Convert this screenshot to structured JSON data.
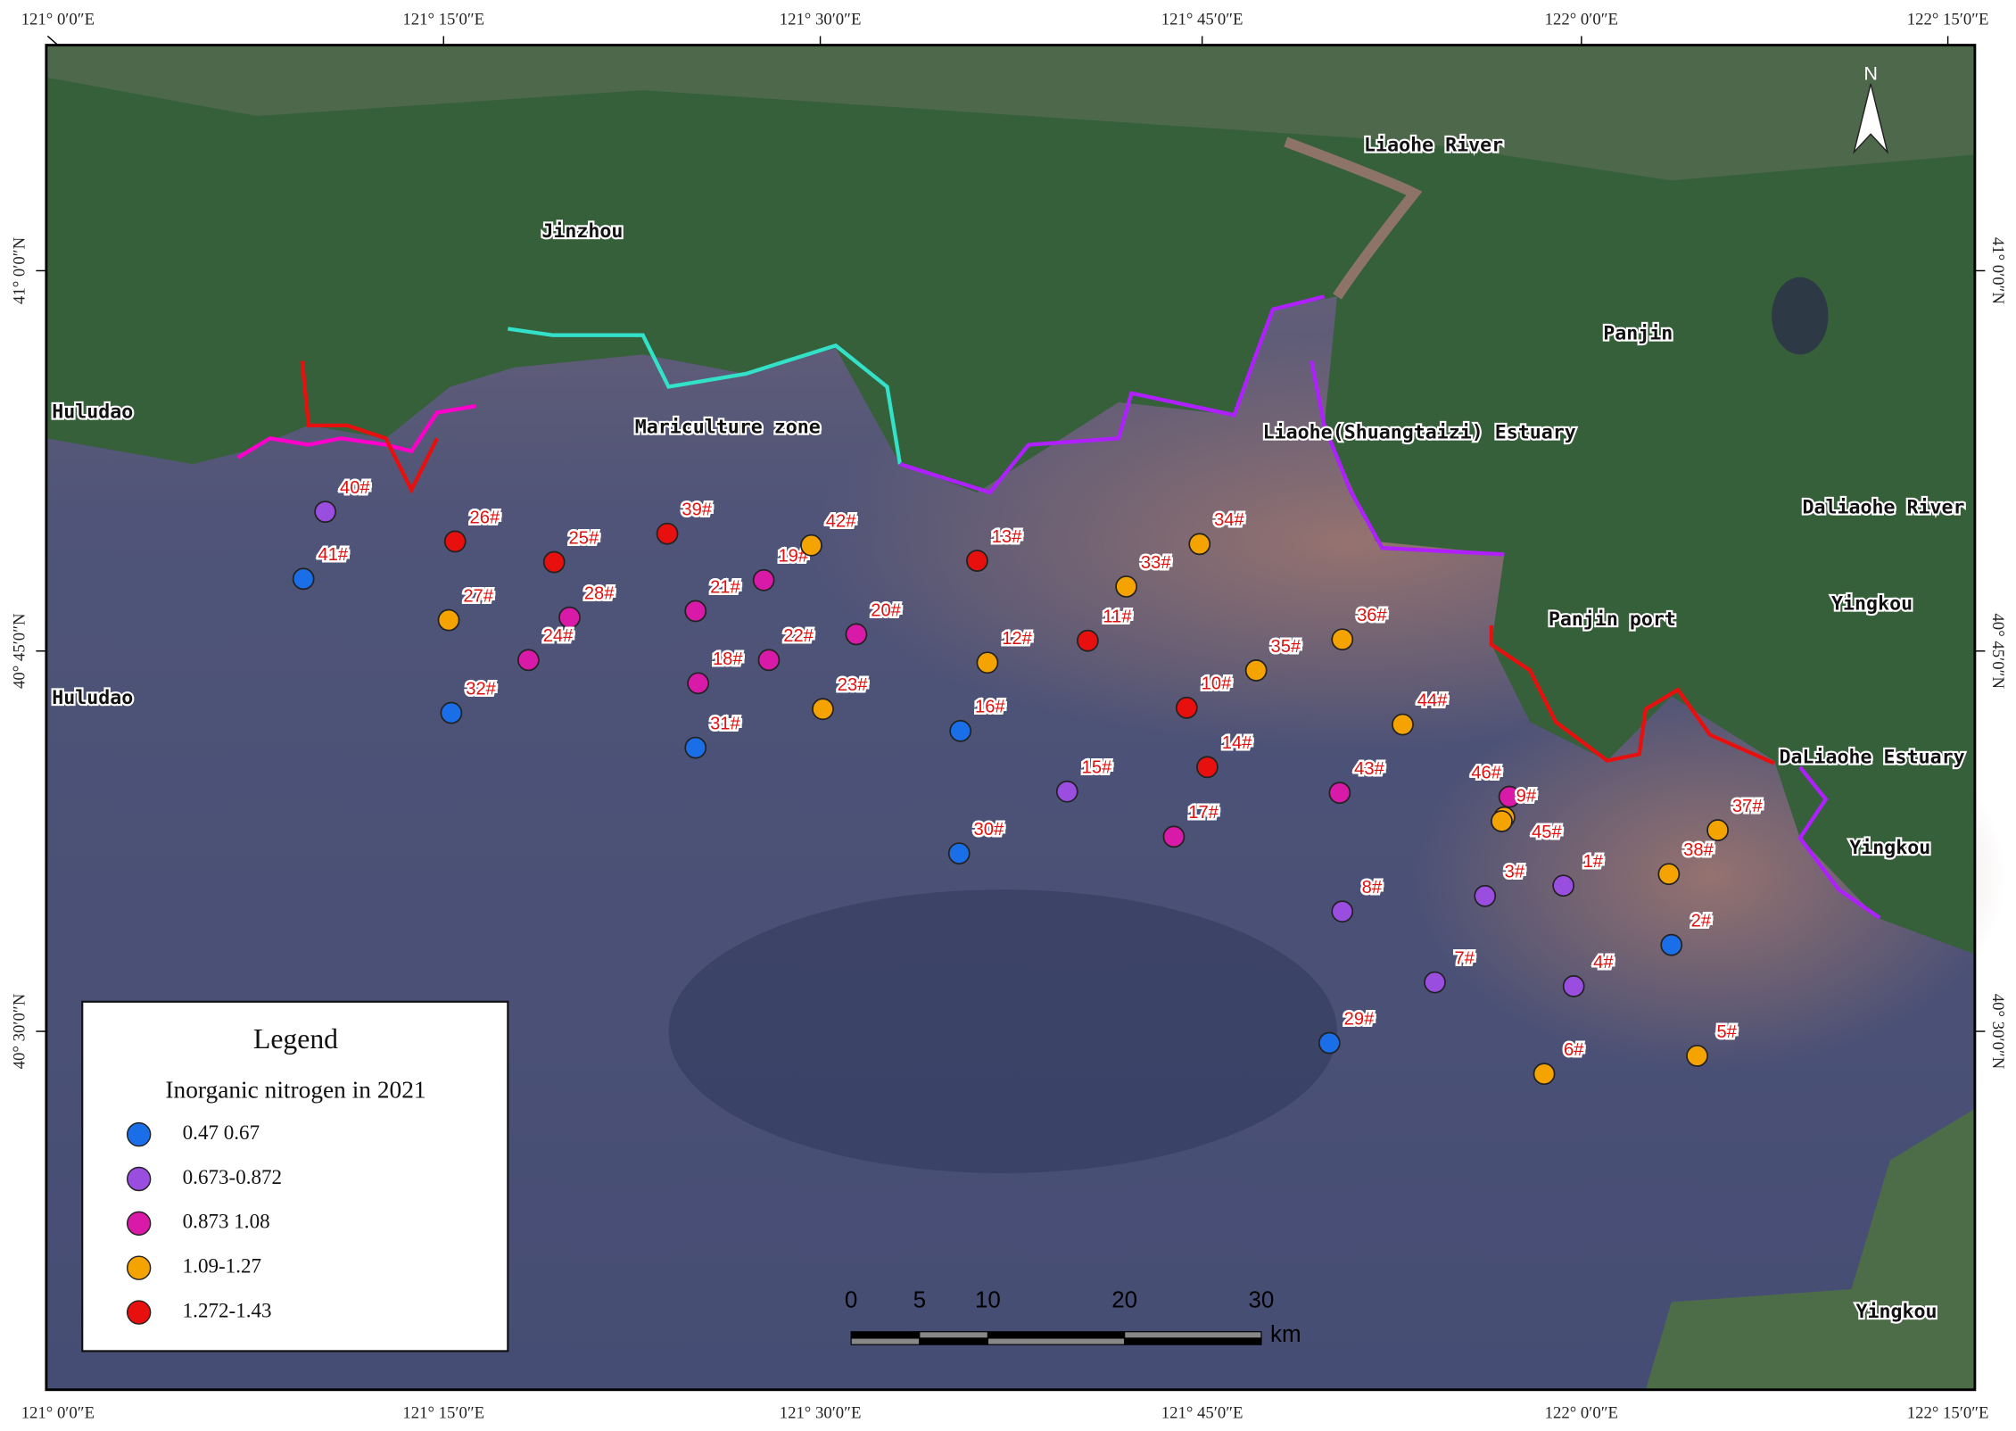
{
  "map": {
    "lon_labels": [
      "121° 0′0″E",
      "121° 15′0″E",
      "121° 30′0″E",
      "121° 45′0″E",
      "122° 0′0″E",
      "122° 15′0″E"
    ],
    "lat_labels": [
      "41° 0′0″N",
      "40° 45′0″N",
      "40° 30′0″N"
    ],
    "places": [
      "Jinzhou",
      "Huludao",
      "Huludao",
      "Mariculture zone",
      "Liaohe River",
      "Panjin",
      "Liaohe(Shuangtaizi) Estuary",
      "Daliaohe River",
      "Yingkou",
      "Panjin port",
      "DaLiaohe Estuary",
      "Yingkou",
      "Yingkou"
    ],
    "north": "N",
    "scale_bar": {
      "ticks": [
        0,
        5,
        10,
        20,
        30
      ],
      "unit": "km"
    },
    "legend": {
      "title": "Legend",
      "subtitle": "Inorganic nitrogen in 2021",
      "items": [
        {
          "label": "0.47 0.67",
          "color": "#1a6fe8",
          "stations": [
            "41#",
            "32#",
            "31#",
            "16#",
            "30#",
            "2#",
            "29#"
          ]
        },
        {
          "label": "0.673-0.872",
          "color": "#9a4ee0",
          "stations": [
            "40#",
            "15#",
            "8#",
            "3#",
            "1#",
            "7#",
            "4#"
          ]
        },
        {
          "label": "0.873 1.08",
          "color": "#d91aa8",
          "stations": [
            "28#",
            "24#",
            "19#",
            "21#",
            "20#",
            "22#",
            "18#",
            "17#",
            "43#",
            "46#"
          ]
        },
        {
          "label": "1.09-1.27",
          "color": "#f5a300",
          "stations": [
            "27#",
            "42#",
            "23#",
            "12#",
            "33#",
            "34#",
            "35#",
            "36#",
            "44#",
            "9#",
            "45#",
            "38#",
            "37#",
            "6#",
            "5#"
          ]
        },
        {
          "label": "1.272-1.43",
          "color": "#e8100e",
          "stations": [
            "26#",
            "25#",
            "39#",
            "13#",
            "11#",
            "10#",
            "14#"
          ]
        }
      ]
    }
  }
}
